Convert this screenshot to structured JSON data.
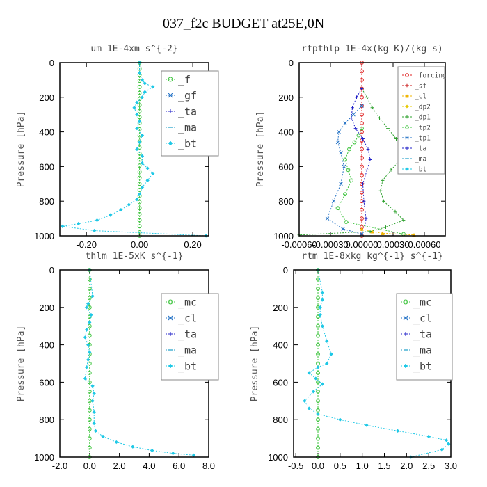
{
  "title": "037_f2c  BUDGET at25E,0N",
  "chart_data": [
    {
      "type": "line",
      "title": "um  1E-4xm s^{-2}",
      "ylabel": "Pressure [hPa]",
      "xlim": [
        -0.3,
        0.26
      ],
      "ylim": [
        1000,
        0
      ],
      "xticks": [
        -0.2,
        0.0,
        0.2
      ],
      "xtick_labels": [
        "-0.20",
        "0.00",
        "0.20"
      ],
      "yticks": [
        0,
        200,
        400,
        600,
        800,
        1000
      ],
      "ytick_labels": [
        "0",
        "200",
        "400",
        "600",
        "800",
        "1000"
      ],
      "legend": "top-right",
      "series": [
        {
          "name": "_f",
          "color": "#3cc43c",
          "marker": "circle",
          "x": [
            0,
            0,
            0,
            0,
            0,
            0,
            0,
            0,
            0,
            0,
            0,
            0,
            0,
            0,
            0,
            0,
            0,
            0,
            0,
            0,
            0,
            0,
            0,
            0,
            0,
            0,
            0,
            0,
            0,
            0
          ],
          "y": [
            0,
            35,
            70,
            105,
            140,
            175,
            210,
            245,
            280,
            315,
            350,
            385,
            420,
            455,
            490,
            525,
            560,
            595,
            630,
            665,
            700,
            735,
            770,
            805,
            840,
            875,
            910,
            945,
            980,
            1000
          ]
        },
        {
          "name": "_gf",
          "color": "#1f6fc4",
          "marker": "x",
          "x": [],
          "y": []
        },
        {
          "name": "_ta",
          "color": "#2020c8",
          "marker": "plus",
          "x": [],
          "y": []
        },
        {
          "name": "_ma",
          "color": "#1c9ec8",
          "marker": "dash",
          "x": [],
          "y": []
        },
        {
          "name": "_bt",
          "color": "#1ec8e6",
          "marker": "diamond",
          "x": [
            0,
            0,
            0.01,
            0.02,
            0.05,
            0.02,
            0.01,
            -0.01,
            -0.02,
            -0.01,
            0,
            -0.01,
            0.01,
            0,
            -0.01,
            0.01,
            0.01,
            0.03,
            0.05,
            0.03,
            0.01,
            0,
            -0.01,
            -0.04,
            -0.07,
            -0.11,
            -0.16,
            -0.23,
            -0.29,
            -0.17,
            0.25
          ],
          "y": [
            0,
            60,
            100,
            120,
            140,
            170,
            200,
            230,
            260,
            300,
            340,
            380,
            420,
            460,
            500,
            540,
            580,
            610,
            640,
            680,
            720,
            760,
            790,
            820,
            850,
            880,
            910,
            930,
            945,
            970,
            1000
          ]
        }
      ]
    },
    {
      "type": "line",
      "title": "rtpthlp  1E-4x(kg K)/(kg s)",
      "ylabel": "Pressure [hPa]",
      "xlim": [
        -0.0006,
        0.0008
      ],
      "ylim": [
        1000,
        0
      ],
      "xticks": [
        -0.0006,
        -0.0003,
        0.0,
        0.0003,
        0.0006
      ],
      "xtick_labels": [
        "-0.00060",
        "-0.00030",
        "0.00000",
        "0.00030",
        "0.00060"
      ],
      "yticks": [
        0,
        200,
        400,
        600,
        800,
        1000
      ],
      "ytick_labels": [
        "0",
        "200",
        "400",
        "600",
        "800",
        "1000"
      ],
      "legend": "top-right",
      "series": [
        {
          "name": "_forcing",
          "color": "#e02020",
          "marker": "circle",
          "x": [
            0,
            0,
            0,
            0,
            0,
            0,
            0,
            0,
            0,
            0,
            0,
            0,
            0,
            0,
            0,
            0,
            0,
            0,
            0,
            0,
            0
          ],
          "y": [
            0,
            50,
            100,
            150,
            200,
            250,
            300,
            350,
            400,
            450,
            500,
            550,
            600,
            650,
            700,
            750,
            800,
            850,
            900,
            950,
            1000
          ]
        },
        {
          "name": "_sf",
          "color": "#c81010",
          "marker": "plus",
          "x": [],
          "y": []
        },
        {
          "name": "_cl",
          "color": "#f0b400",
          "marker": "triangle",
          "x": [
            0,
            0.0001,
            0.0002,
            0.0005
          ],
          "y": [
            960,
            975,
            985,
            995
          ]
        },
        {
          "name": "_dp2",
          "color": "#e6c800",
          "marker": "diamond",
          "x": [],
          "y": []
        },
        {
          "name": "_dp1",
          "color": "#2ca02c",
          "marker": "plus",
          "x": [
            0,
            5e-05,
            0.0001,
            0.00017,
            0.00025,
            0.00033,
            0.0004,
            0.00037,
            0.00028,
            0.0002,
            0.00018,
            0.00021,
            0.00032,
            0.0004,
            0.00023,
            8e-05,
            -0.0006
          ],
          "y": [
            150,
            200,
            260,
            320,
            380,
            440,
            500,
            560,
            620,
            680,
            740,
            800,
            860,
            910,
            950,
            975,
            995
          ]
        },
        {
          "name": "_tp2",
          "color": "#3cc43c",
          "marker": "circle",
          "x": [
            0,
            -3e-05,
            -7e-05,
            -0.00012,
            -0.00016,
            -0.00013,
            -0.0001,
            -0.00016,
            -0.00023,
            -0.00015,
            0.0004
          ],
          "y": [
            380,
            420,
            460,
            500,
            560,
            620,
            680,
            760,
            840,
            920,
            990
          ]
        },
        {
          "name": "_tp1",
          "color": "#1f6fc4",
          "marker": "x",
          "x": [
            0,
            -8e-05,
            -0.00016,
            -0.00022,
            -0.00023,
            -0.0002,
            -0.00017,
            -0.0002,
            -0.00027,
            -0.00033,
            -0.00018,
            0
          ],
          "y": [
            250,
            300,
            350,
            400,
            460,
            520,
            600,
            700,
            800,
            900,
            960,
            990
          ]
        },
        {
          "name": "_ta",
          "color": "#2020c8",
          "marker": "plus",
          "x": [
            0,
            -5e-05,
            -9e-05,
            -0.0001,
            -6e-05,
            1e-05,
            6e-05,
            8e-05,
            5e-05,
            1e-05,
            2e-05,
            4e-05,
            3e-05
          ],
          "y": [
            150,
            200,
            260,
            320,
            380,
            440,
            500,
            560,
            620,
            700,
            800,
            900,
            950
          ]
        },
        {
          "name": "_ma",
          "color": "#1c9ec8",
          "marker": "dash",
          "x": [],
          "y": []
        },
        {
          "name": "_bt",
          "color": "#1ec8e6",
          "marker": "diamond",
          "x": [],
          "y": []
        }
      ]
    },
    {
      "type": "line",
      "title": "thlm  1E-5xK s^{-1}",
      "ylabel": "Pressure [hPa]",
      "xlim": [
        -2.0,
        8.0
      ],
      "ylim": [
        1000,
        0
      ],
      "xticks": [
        -2,
        0,
        2,
        4,
        6,
        8
      ],
      "xtick_labels": [
        "-2.0",
        "0.0",
        "2.0",
        "4.0",
        "6.0",
        "8.0"
      ],
      "yticks": [
        0,
        200,
        400,
        600,
        800,
        1000
      ],
      "ytick_labels": [
        "0",
        "200",
        "400",
        "600",
        "800",
        "1000"
      ],
      "legend": "top-right",
      "series": [
        {
          "name": "_mc",
          "color": "#3cc43c",
          "marker": "circle",
          "x": [
            0,
            0,
            0,
            0,
            0,
            0,
            0,
            0,
            0,
            0,
            0,
            0,
            0,
            0,
            0,
            0,
            0,
            0,
            0,
            0,
            0
          ],
          "y": [
            0,
            50,
            100,
            150,
            200,
            250,
            300,
            350,
            400,
            450,
            500,
            550,
            600,
            650,
            700,
            750,
            800,
            850,
            900,
            950,
            1000
          ]
        },
        {
          "name": "_cl",
          "color": "#1f6fc4",
          "marker": "x",
          "x": [],
          "y": []
        },
        {
          "name": "_ta",
          "color": "#2020c8",
          "marker": "plus",
          "x": [],
          "y": []
        },
        {
          "name": "_ma",
          "color": "#1c9ec8",
          "marker": "dash",
          "x": [],
          "y": []
        },
        {
          "name": "_bt",
          "color": "#1ec8e6",
          "marker": "diamond",
          "x": [
            0,
            0.2,
            -0.1,
            -0.2,
            0.1,
            0,
            -0.2,
            -0.3,
            -0.1,
            0,
            -0.1,
            -0.2,
            -0.3,
            0.2,
            0.3,
            0.2,
            0.3,
            0.3,
            0.4,
            0.9,
            1.8,
            2.9,
            4.2,
            5.6,
            7.0
          ],
          "y": [
            0,
            140,
            180,
            200,
            240,
            280,
            320,
            360,
            400,
            440,
            480,
            520,
            580,
            620,
            660,
            700,
            760,
            820,
            860,
            890,
            920,
            945,
            965,
            980,
            990
          ]
        }
      ]
    },
    {
      "type": "line",
      "title": "rtm  1E-8xkg kg^{-1} s^{-1}",
      "ylabel": "Pressure [hPa]",
      "xlim": [
        -0.55,
        3.0
      ],
      "ylim": [
        1000,
        0
      ],
      "xticks": [
        -0.5,
        0.0,
        0.5,
        1.0,
        1.5,
        2.0,
        2.5,
        3.0
      ],
      "xtick_labels": [
        "-0.5",
        "0.0",
        "0.5",
        "1.0",
        "1.5",
        "2.0",
        "2.5",
        "3.0"
      ],
      "yticks": [
        0,
        200,
        400,
        600,
        800,
        1000
      ],
      "ytick_labels": [
        "0",
        "200",
        "400",
        "600",
        "800",
        "1000"
      ],
      "legend": "top-right",
      "series": [
        {
          "name": "_mc",
          "color": "#3cc43c",
          "marker": "circle",
          "x": [
            0,
            0,
            0,
            0,
            0,
            0,
            0,
            0,
            0,
            0,
            0,
            0,
            0,
            0,
            0,
            0,
            0,
            0,
            0,
            0,
            0
          ],
          "y": [
            0,
            50,
            100,
            150,
            200,
            250,
            300,
            350,
            400,
            450,
            500,
            550,
            600,
            650,
            700,
            750,
            800,
            850,
            900,
            950,
            1000
          ]
        },
        {
          "name": "_cl",
          "color": "#1f6fc4",
          "marker": "x",
          "x": [],
          "y": []
        },
        {
          "name": "_ta",
          "color": "#2020c8",
          "marker": "plus",
          "x": [],
          "y": []
        },
        {
          "name": "_ma",
          "color": "#1c9ec8",
          "marker": "dash",
          "x": [],
          "y": []
        },
        {
          "name": "_bt",
          "color": "#1ec8e6",
          "marker": "diamond",
          "x": [
            0,
            0.1,
            0.1,
            0.05,
            0.05,
            0.1,
            0.2,
            0.3,
            0.2,
            0,
            -0.2,
            -0.05,
            0.1,
            -0.1,
            -0.3,
            -0.2,
            0,
            0.5,
            1.1,
            1.8,
            2.5,
            2.9,
            2.95,
            2.8,
            2.1
          ],
          "y": [
            0,
            120,
            160,
            200,
            240,
            300,
            380,
            450,
            500,
            520,
            550,
            580,
            610,
            650,
            700,
            740,
            770,
            800,
            830,
            860,
            890,
            910,
            930,
            960,
            1000
          ]
        }
      ]
    }
  ]
}
